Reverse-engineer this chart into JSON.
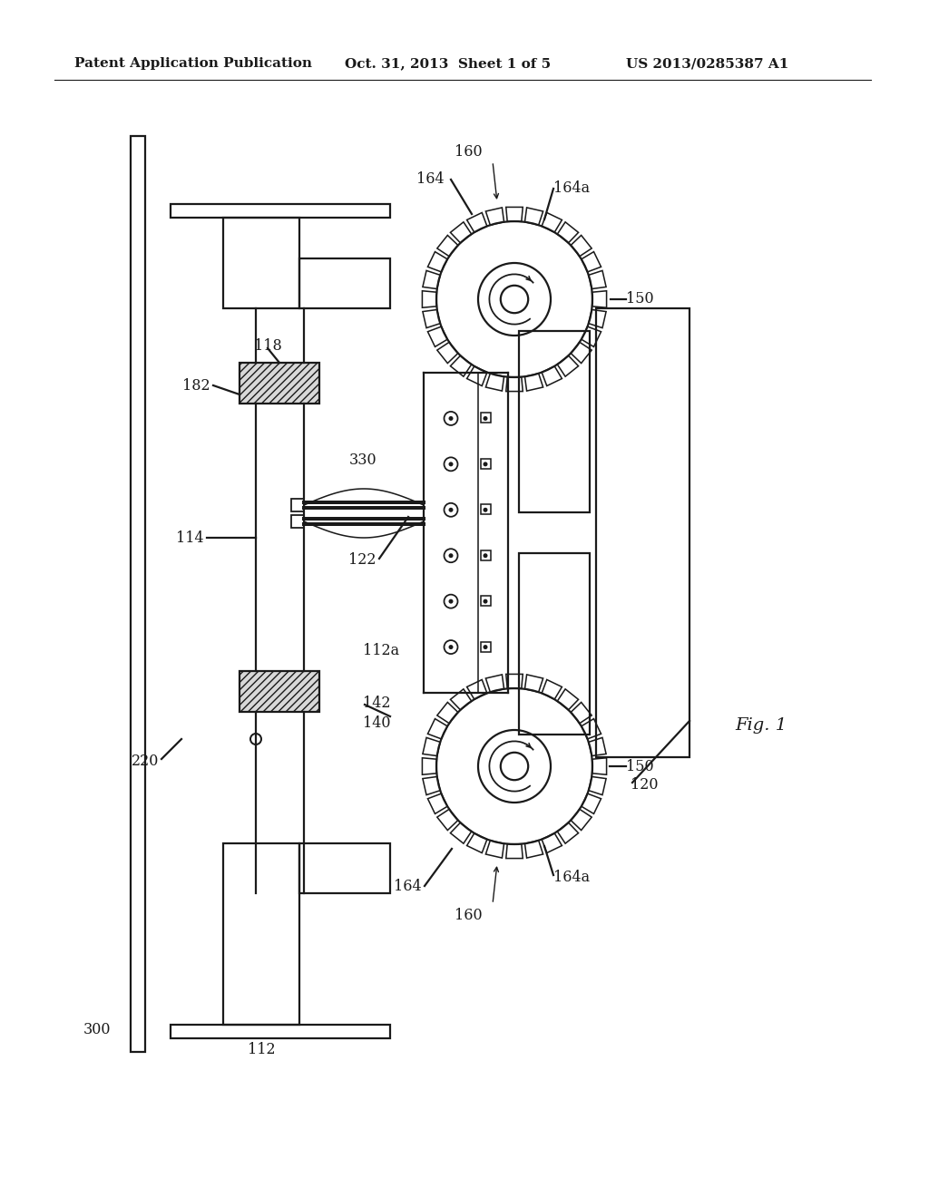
{
  "bg_color": "#ffffff",
  "line_color": "#1a1a1a",
  "header_left": "Patent Application Publication",
  "header_mid": "Oct. 31, 2013  Sheet 1 of 5",
  "header_right": "US 2013/0285387 A1",
  "fig_label": "Fig. 1"
}
